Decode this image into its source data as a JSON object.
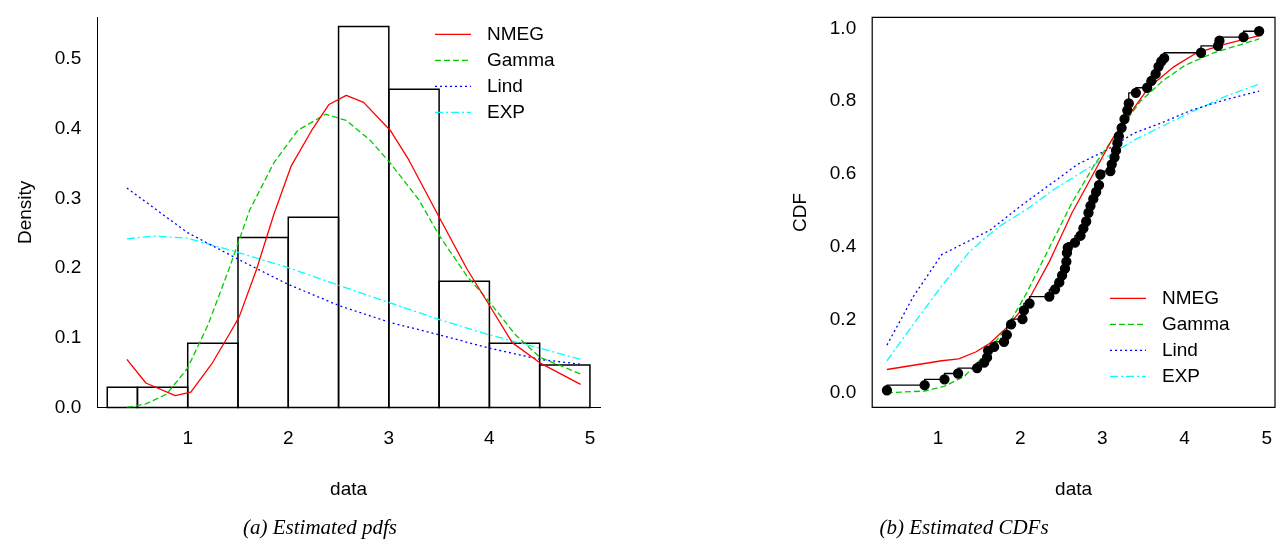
{
  "chart_data": [
    {
      "type": "histogram",
      "xlabel": "data",
      "ylabel": "Density",
      "annotations": [
        "(a) Estimated pdfs"
      ],
      "bins": [
        0.2,
        0.5,
        1,
        1.5,
        2,
        2.5,
        3,
        3.5,
        4,
        4.5,
        5
      ],
      "values": [
        0.029,
        0.029,
        0.092,
        0.244,
        0.273,
        0.547,
        0.457,
        0.181,
        0.092,
        0.061
      ],
      "color": "#000000",
      "xlim": [
        0.1,
        5.1
      ],
      "xticks": [
        1,
        2,
        3,
        4,
        5
      ],
      "ylim": [
        0,
        0.56
      ],
      "yticks": [
        {
          "value": 0,
          "label": "0.0"
        },
        {
          "value": 0.1,
          "label": "0.1"
        },
        {
          "value": 0.2,
          "label": "0.2"
        },
        {
          "value": 0.3,
          "label": "0.3"
        },
        {
          "value": 0.4,
          "label": "0.4"
        },
        {
          "value": 0.5,
          "label": "0.5"
        }
      ],
      "legend": "top right",
      "series": [
        {
          "name": "NMEG",
          "type": "line",
          "color": "#ff0000",
          "line_style": "solid",
          "x": [
            0.395,
            0.584,
            0.876,
            1.031,
            1.237,
            1.409,
            1.512,
            1.684,
            1.856,
            2.027,
            2.234,
            2.405,
            2.577,
            2.749,
            3.013,
            3.196,
            3.505,
            3.78,
            4.003,
            4.227,
            4.502,
            4.907
          ],
          "values": [
            0.069,
            0.035,
            0.017,
            0.022,
            0.062,
            0.104,
            0.13,
            0.198,
            0.277,
            0.346,
            0.398,
            0.435,
            0.448,
            0.438,
            0.398,
            0.356,
            0.272,
            0.198,
            0.146,
            0.093,
            0.064,
            0.033
          ]
        },
        {
          "name": "Gamma",
          "type": "line",
          "color": "#00cd00",
          "line_style": "dashed",
          "x": [
            0.395,
            0.584,
            0.79,
            0.997,
            1.203,
            1.409,
            1.615,
            1.856,
            2.096,
            2.371,
            2.577,
            2.818,
            3.013,
            3.299,
            3.505,
            3.78,
            4.003,
            4.261,
            4.502,
            4.907
          ],
          "values": [
            0,
            0.005,
            0.019,
            0.056,
            0.119,
            0.198,
            0.283,
            0.351,
            0.398,
            0.421,
            0.412,
            0.383,
            0.351,
            0.298,
            0.246,
            0.188,
            0.151,
            0.104,
            0.072,
            0.048
          ]
        },
        {
          "name": "Lind",
          "type": "line",
          "color": "#0000ff",
          "line_style": "dotted",
          "x": [
            0.395,
            0.997,
            1.512,
            1.993,
            2.508,
            3.013,
            3.505,
            4.003,
            4.502,
            4.907
          ],
          "values": [
            0.315,
            0.251,
            0.212,
            0.177,
            0.146,
            0.122,
            0.104,
            0.085,
            0.069,
            0.062
          ]
        },
        {
          "name": "EXP",
          "type": "line",
          "color": "#00ffff",
          "line_style": "dashdot",
          "x": [
            0.395,
            0.653,
            0.997,
            1.512,
            1.993,
            2.508,
            3.013,
            3.505,
            4.003,
            4.502,
            4.907
          ],
          "values": [
            0.242,
            0.246,
            0.243,
            0.222,
            0.201,
            0.175,
            0.15,
            0.126,
            0.104,
            0.085,
            0.069
          ]
        }
      ]
    },
    {
      "type": "line",
      "xlabel": "data",
      "ylabel": "CDF",
      "annotations": [
        "(b) Estimated CDFs"
      ],
      "xlim": [
        0.2,
        5.1
      ],
      "xticks": [
        1,
        2,
        3,
        4,
        5
      ],
      "ylim": [
        -0.04,
        1.03
      ],
      "yticks": [
        {
          "value": 0,
          "label": "0.0"
        },
        {
          "value": 0.2,
          "label": "0.2"
        },
        {
          "value": 0.4,
          "label": "0.4"
        },
        {
          "value": 0.6,
          "label": "0.6"
        },
        {
          "value": 0.8,
          "label": "0.8"
        },
        {
          "value": 1,
          "label": "1.0"
        }
      ],
      "legend": "bottom right",
      "series": [
        {
          "type": "scatter",
          "color": "#000000",
          "marker": "circle",
          "x": [
            0.379,
            0.838,
            1.079,
            1.245,
            1.476,
            1.562,
            1.597,
            1.61,
            1.683,
            1.803,
            1.838,
            1.89,
            2.028,
            2.045,
            2.114,
            2.355,
            2.424,
            2.476,
            2.51,
            2.545,
            2.562,
            2.569,
            2.579,
            2.666,
            2.734,
            2.769,
            2.803,
            2.831,
            2.855,
            2.89,
            2.924,
            2.959,
            2.976,
            3.097,
            3.114,
            3.148,
            3.166,
            3.183,
            3.2,
            3.234,
            3.269,
            3.303,
            3.321,
            3.407,
            3.545,
            3.597,
            3.648,
            3.683,
            3.717,
            3.752,
            4.2,
            4.407,
            4.424,
            4.717,
            4.907
          ],
          "values": [
            0.007,
            0.021,
            0.037,
            0.053,
            0.068,
            0.083,
            0.097,
            0.116,
            0.126,
            0.14,
            0.159,
            0.188,
            0.202,
            0.226,
            0.245,
            0.264,
            0.284,
            0.303,
            0.322,
            0.341,
            0.36,
            0.384,
            0.398,
            0.412,
            0.431,
            0.451,
            0.47,
            0.494,
            0.513,
            0.532,
            0.551,
            0.57,
            0.599,
            0.608,
            0.627,
            0.646,
            0.665,
            0.685,
            0.704,
            0.727,
            0.751,
            0.775,
            0.794,
            0.823,
            0.837,
            0.856,
            0.875,
            0.895,
            0.909,
            0.918,
            0.933,
            0.952,
            0.966,
            0.976,
            0.992
          ]
        },
        {
          "type": "step",
          "color": "#000000",
          "line_style": "solid",
          "x": [
            0.379,
            0.838,
            1.079,
            1.245,
            1.476,
            1.562,
            1.597,
            1.61,
            1.683,
            1.803,
            1.838,
            1.89,
            2.028,
            2.045,
            2.114,
            2.355,
            2.424,
            2.476,
            2.51,
            2.545,
            2.562,
            2.569,
            2.579,
            2.666,
            2.734,
            2.769,
            2.803,
            2.831,
            2.855,
            2.89,
            2.924,
            2.959,
            2.976,
            3.097,
            3.114,
            3.148,
            3.166,
            3.183,
            3.2,
            3.234,
            3.269,
            3.303,
            3.321,
            3.407,
            3.545,
            3.597,
            3.648,
            3.683,
            3.717,
            3.752,
            4.2,
            4.407,
            4.424,
            4.717,
            4.907
          ],
          "values": [
            0.007,
            0.021,
            0.037,
            0.053,
            0.068,
            0.083,
            0.097,
            0.116,
            0.126,
            0.14,
            0.159,
            0.188,
            0.202,
            0.226,
            0.245,
            0.264,
            0.284,
            0.303,
            0.322,
            0.341,
            0.36,
            0.384,
            0.398,
            0.412,
            0.431,
            0.451,
            0.47,
            0.494,
            0.513,
            0.532,
            0.551,
            0.57,
            0.599,
            0.608,
            0.627,
            0.646,
            0.665,
            0.685,
            0.704,
            0.727,
            0.751,
            0.775,
            0.794,
            0.823,
            0.837,
            0.856,
            0.875,
            0.895,
            0.909,
            0.918,
            0.933,
            0.952,
            0.966,
            0.976,
            0.992
          ]
        },
        {
          "name": "NMEG",
          "type": "line",
          "color": "#ff0000",
          "line_style": "solid",
          "x": [
            0.379,
            1.045,
            1.252,
            1.459,
            1.631,
            1.838,
            2.079,
            2.355,
            2.631,
            2.907,
            3.114,
            3.321,
            3.562,
            3.872,
            4.148,
            4.493,
            4.907
          ],
          "values": [
            0.064,
            0.088,
            0.093,
            0.112,
            0.136,
            0.179,
            0.245,
            0.36,
            0.494,
            0.608,
            0.694,
            0.761,
            0.837,
            0.895,
            0.933,
            0.957,
            0.98
          ]
        },
        {
          "name": "Gamma",
          "type": "line",
          "color": "#00cd00",
          "line_style": "dashed",
          "x": [
            0.379,
            0.838,
            1.079,
            1.321,
            1.562,
            1.838,
            2.079,
            2.355,
            2.631,
            2.907,
            3.183,
            3.459,
            3.734,
            4.01,
            4.355,
            4.907
          ],
          "values": [
            0,
            0.005,
            0.018,
            0.045,
            0.102,
            0.179,
            0.274,
            0.398,
            0.522,
            0.627,
            0.713,
            0.799,
            0.856,
            0.899,
            0.933,
            0.971
          ]
        },
        {
          "name": "Lind",
          "type": "line",
          "color": "#0000ff",
          "line_style": "dotted",
          "x": [
            0.379,
            0.7,
            1.045,
            1.631,
            2.01,
            2.355,
            2.7,
            3.045,
            3.39,
            3.734,
            4.079,
            4.493,
            4.907
          ],
          "values": [
            0.131,
            0.264,
            0.379,
            0.446,
            0.513,
            0.57,
            0.627,
            0.665,
            0.713,
            0.742,
            0.775,
            0.804,
            0.828
          ]
        },
        {
          "name": "EXP",
          "type": "line",
          "color": "#00ffff",
          "line_style": "dashdot",
          "x": [
            0.379,
            0.7,
            1.045,
            1.39,
            1.734,
            2.079,
            2.424,
            2.769,
            3.045,
            3.39,
            3.734,
            4.079,
            4.493,
            4.907
          ],
          "values": [
            0.088,
            0.188,
            0.293,
            0.389,
            0.455,
            0.503,
            0.56,
            0.608,
            0.646,
            0.694,
            0.732,
            0.77,
            0.813,
            0.847
          ]
        }
      ]
    }
  ]
}
